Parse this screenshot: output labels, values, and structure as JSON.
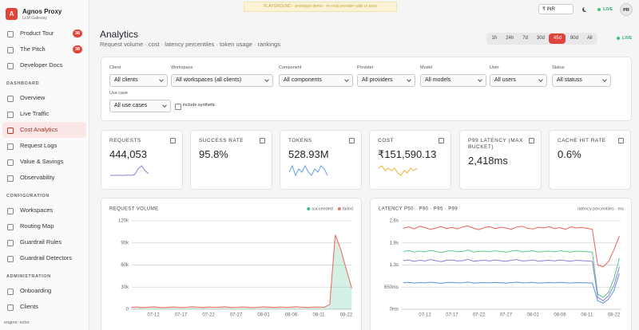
{
  "sidebar": {
    "logo": "A",
    "brand": "Agnos Proxy",
    "tagline": "LLM Gateway",
    "top_items": [
      {
        "label": "Product Tour",
        "badge": "38"
      },
      {
        "label": "The Pitch",
        "badge": "38"
      },
      {
        "label": "Developer Docs"
      }
    ],
    "sections": [
      {
        "title": "DASHBOARD",
        "items": [
          {
            "label": "Overview"
          },
          {
            "label": "Live Traffic"
          },
          {
            "label": "Cost Analytics",
            "active": true
          },
          {
            "label": "Request Logs"
          },
          {
            "label": "Value & Savings"
          },
          {
            "label": "Observability"
          }
        ]
      },
      {
        "title": "CONFIGURATION",
        "items": [
          {
            "label": "Workspaces"
          },
          {
            "label": "Routing Map"
          },
          {
            "label": "Guardrail Rules"
          },
          {
            "label": "Guardrail Detectors"
          }
        ]
      },
      {
        "title": "ADMINISTRATION",
        "items": [
          {
            "label": "Onboarding"
          },
          {
            "label": "Clients"
          }
        ]
      }
    ],
    "footer": "engine: echo"
  },
  "topbar": {
    "banner": "PLAYGROUND · prototype demo · no real provider calls or keys",
    "currency": "₹ INR",
    "live": "LIVE",
    "avatar": "PR"
  },
  "header": {
    "title": "Analytics",
    "subtitle": "Request volume · cost · latency percentiles · token usage · rankings",
    "ranges": [
      {
        "label": "1h"
      },
      {
        "label": "24h"
      },
      {
        "label": "7d"
      },
      {
        "label": "30d"
      },
      {
        "label": "45d",
        "active": true
      },
      {
        "label": "90d"
      },
      {
        "label": "All"
      }
    ],
    "live": "LIVE"
  },
  "filters": [
    {
      "label": "Client",
      "value": "All clients"
    },
    {
      "label": "Workspace",
      "value": "All workspaces (all clients)"
    },
    {
      "label": "Component",
      "value": "All components"
    },
    {
      "label": "Provider",
      "value": "All providers"
    },
    {
      "label": "Model",
      "value": "All models"
    },
    {
      "label": "User",
      "value": "All users"
    },
    {
      "label": "Status",
      "value": "All statuss"
    },
    {
      "label": "Use case",
      "value": "All use cases"
    }
  ],
  "synthetic": "include synthetic",
  "kpis": [
    {
      "label": "REQUESTS",
      "value": "444,053",
      "color": "#8a80d8",
      "spark": [
        2,
        2,
        2.1,
        2,
        2,
        2.2,
        2,
        2.5,
        6,
        8,
        5,
        3
      ]
    },
    {
      "label": "SUCCESS RATE",
      "value": "95.8%"
    },
    {
      "label": "TOKENS",
      "value": "528.93M",
      "color": "#6a9be0",
      "spark": [
        5,
        7,
        4,
        6,
        5,
        7,
        5,
        4,
        6,
        5,
        7,
        6,
        4
      ]
    },
    {
      "label": "COST",
      "value": "₹151,590.13",
      "color": "#f0b035",
      "spark": [
        6,
        7,
        5,
        6,
        5,
        6,
        4,
        3,
        5,
        4,
        6,
        5,
        6
      ]
    },
    {
      "label": "P99 LATENCY (MAX BUCKET)",
      "value": "2,418ms"
    },
    {
      "label": "CACHE HIT RATE",
      "value": "0.6%"
    }
  ],
  "charts": [
    {
      "type": "area",
      "title": "REQUEST VOLUME",
      "stacked": true,
      "categories": [
        null,
        null,
        null,
        null,
        "07-12",
        null,
        null,
        null,
        null,
        "07-17",
        null,
        null,
        null,
        null,
        "07-22",
        null,
        null,
        null,
        null,
        "07-27",
        null,
        null,
        null,
        null,
        "08-01",
        null,
        null,
        null,
        null,
        "08-06",
        null,
        null,
        null,
        null,
        "08-11",
        null,
        null,
        null,
        null,
        "08-22",
        null
      ],
      "series": [
        {
          "name": "succeeded",
          "color": "#3cc08a",
          "values": [
            1400,
            1600,
            1300,
            1500,
            1700,
            1400,
            1200,
            1500,
            1600,
            1300,
            1400,
            1800,
            1500,
            1300,
            1600,
            1400,
            1500,
            1700,
            1300,
            1400,
            1600,
            1500,
            1200,
            1400,
            1700,
            1500,
            1300,
            1600,
            1400,
            1500,
            1800,
            1400,
            1300,
            1500,
            1600,
            1400,
            6000,
            96000,
            78000,
            52000,
            27000
          ]
        },
        {
          "name": "failed",
          "color": "#e8726a",
          "values": [
            1200,
            1500,
            1100,
            1300,
            1600,
            1200,
            1000,
            1400,
            1500,
            1100,
            1300,
            1700,
            1400,
            1200,
            1500,
            1300,
            1400,
            1600,
            1200,
            1300,
            1500,
            1400,
            1100,
            1300,
            1600,
            1400,
            1200,
            1500,
            1300,
            1400,
            1700,
            1300,
            1200,
            1400,
            1500,
            1300,
            400,
            5000,
            3500,
            2500,
            1500
          ]
        }
      ],
      "ylim": [
        0,
        120000
      ],
      "yticks": [
        0,
        {
          "value": 30000,
          "label": "30k"
        },
        {
          "value": 60000,
          "label": "60k"
        },
        {
          "value": 90000,
          "label": "90k"
        },
        {
          "value": 120000,
          "label": "120k"
        }
      ],
      "grid": true,
      "legend": "top-right"
    },
    {
      "type": "line",
      "title": "LATENCY P50 · P90 · P95 · P99",
      "subtitle": "latency percentiles · ms",
      "categories": [
        null,
        null,
        null,
        null,
        "07-12",
        null,
        null,
        null,
        null,
        "07-17",
        null,
        null,
        null,
        null,
        "07-22",
        null,
        null,
        null,
        null,
        "07-27",
        null,
        null,
        null,
        null,
        "08-01",
        null,
        null,
        null,
        null,
        "08-06",
        null,
        null,
        null,
        null,
        "08-11",
        null,
        null,
        null,
        null,
        "08-22",
        null
      ],
      "series": [
        {
          "color": "#e8615a",
          "values": [
            2380,
            2420,
            2360,
            2440,
            2400,
            2350,
            2390,
            2430,
            2370,
            2410,
            2360,
            2420,
            2450,
            2380,
            2340,
            2400,
            2430,
            2370,
            2410,
            2390,
            2350,
            2420,
            2440,
            2380,
            2360,
            2410,
            2390,
            2430,
            2370,
            2400,
            2350,
            2420,
            2390,
            2410,
            2380,
            2350,
            1300,
            1250,
            1400,
            1750,
            2150
          ]
        },
        {
          "color": "#5cc78e",
          "values": [
            1700,
            1720,
            1680,
            1710,
            1690,
            1730,
            1700,
            1670,
            1710,
            1720,
            1690,
            1700,
            1740,
            1680,
            1700,
            1710,
            1690,
            1720,
            1700,
            1680,
            1710,
            1730,
            1690,
            1700,
            1720,
            1680,
            1700,
            1710,
            1690,
            1720,
            1700,
            1680,
            1710,
            1700,
            1690,
            1680,
            450,
            350,
            500,
            900,
            1500
          ]
        },
        {
          "color": "#8a7fd6",
          "values": [
            1430,
            1450,
            1410,
            1440,
            1420,
            1460,
            1430,
            1400,
            1440,
            1450,
            1420,
            1430,
            1470,
            1410,
            1430,
            1440,
            1420,
            1450,
            1430,
            1410,
            1440,
            1460,
            1420,
            1430,
            1450,
            1410,
            1430,
            1440,
            1420,
            1450,
            1430,
            1410,
            1440,
            1430,
            1420,
            1410,
            350,
            250,
            400,
            700,
            1250
          ]
        },
        {
          "color": "#5b8fe0",
          "values": [
            780,
            790,
            770,
            785,
            775,
            795,
            780,
            765,
            785,
            790,
            775,
            780,
            800,
            770,
            780,
            785,
            775,
            790,
            780,
            770,
            785,
            795,
            775,
            780,
            790,
            770,
            780,
            785,
            775,
            790,
            780,
            770,
            785,
            780,
            775,
            770,
            250,
            180,
            300,
            550,
            1050
          ]
        }
      ],
      "ylim": [
        0,
        2600
      ],
      "yticks": [
        {
          "value": 0,
          "label": "0ms"
        },
        {
          "value": 650,
          "label": "650ms"
        },
        {
          "value": 1300,
          "label": "1.3s"
        },
        {
          "value": 1950,
          "label": "1.9s"
        },
        {
          "value": 2600,
          "label": "2.6s"
        }
      ],
      "grid": true
    }
  ]
}
